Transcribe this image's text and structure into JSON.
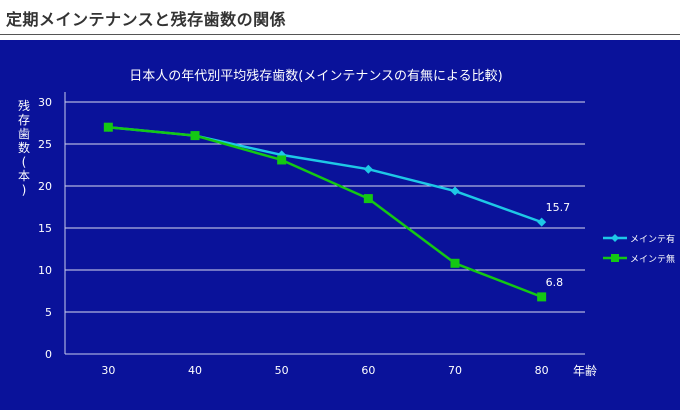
{
  "page": {
    "title": "定期メインテナンスと残存歯数の関係"
  },
  "colors": {
    "background": "#0a129a",
    "with_maintenance": "#1ec8e6",
    "without_maintenance": "#14c814",
    "text": "#ffffff",
    "grid": "#ffffff"
  },
  "chart_data": {
    "type": "line",
    "title": "日本人の年代別平均残存歯数(メインテナンスの有無による比較)",
    "xlabel": "年齢",
    "ylabel": "残存歯数(本)",
    "x": [
      30,
      40,
      50,
      60,
      70,
      80
    ],
    "ylim": [
      0,
      30
    ],
    "yticks": [
      0,
      5,
      10,
      15,
      20,
      25,
      30
    ],
    "grid": true,
    "legend_position": "right",
    "series": [
      {
        "name": "メインテ有",
        "marker": "diamond",
        "color": "#1ec8e6",
        "values": [
          27,
          26,
          23.7,
          22,
          19.4,
          15.7
        ],
        "end_label": "15.7"
      },
      {
        "name": "メインテ無",
        "marker": "square",
        "color": "#14c814",
        "values": [
          27,
          26,
          23.1,
          18.5,
          10.8,
          6.8
        ],
        "end_label": "6.8"
      }
    ]
  }
}
